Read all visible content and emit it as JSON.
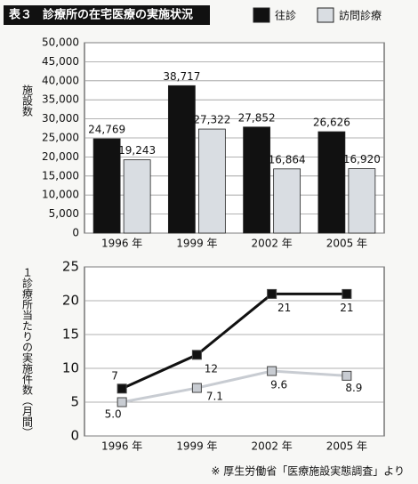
{
  "header": {
    "label": "表３",
    "title": "診療所の在宅医療の実施状況"
  },
  "chart_data": [
    {
      "type": "bar",
      "ylabel": "施設数",
      "categories": [
        "1996 年",
        "1999 年",
        "2002 年",
        "2005 年"
      ],
      "series": [
        {
          "name": "往診",
          "color": "#111111",
          "values": [
            24769,
            38717,
            27852,
            26626
          ],
          "value_labels": [
            "24,769",
            "38,717",
            "27,852",
            "26,626"
          ]
        },
        {
          "name": "訪問診療",
          "color": "#d9dde2",
          "values": [
            19243,
            27322,
            16864,
            16920
          ],
          "value_labels": [
            "19,243",
            "27,322",
            "16,864",
            "16,920"
          ]
        }
      ],
      "ylim": [
        0,
        50000
      ],
      "yticks": [
        0,
        {
          "value": 5000,
          "label": "5,000"
        },
        {
          "value": 10000,
          "label": "10,000"
        },
        {
          "value": 15000,
          "label": "15,000"
        },
        {
          "value": 20000,
          "label": "20,000"
        },
        {
          "value": 25000,
          "label": "25,000"
        },
        {
          "value": 30000,
          "label": "30,000"
        },
        {
          "value": 35000,
          "label": "35,000"
        },
        {
          "value": 40000,
          "label": "40,000"
        },
        {
          "value": 45000,
          "label": "45,000"
        },
        {
          "value": 50000,
          "label": "50,000"
        }
      ],
      "grid": true
    },
    {
      "type": "line",
      "ylabel": "１診療所当たりの実施件数（月間）",
      "categories": [
        "1996 年",
        "1999 年",
        "2002 年",
        "2005 年"
      ],
      "series": [
        {
          "color": "#111111",
          "values": [
            7,
            12,
            21,
            21
          ]
        },
        {
          "color": "#c8ccd2",
          "values": [
            5.0,
            7.1,
            9.6,
            8.9
          ],
          "value_labels": [
            "5.0",
            "7.1",
            "9.6",
            "8.9"
          ]
        }
      ],
      "ylim": [
        0,
        25
      ],
      "yticks": [
        0,
        5,
        10,
        15,
        20,
        25
      ],
      "grid": true
    }
  ],
  "source": "※ 厚生労働省「医療施設実態調査」より"
}
